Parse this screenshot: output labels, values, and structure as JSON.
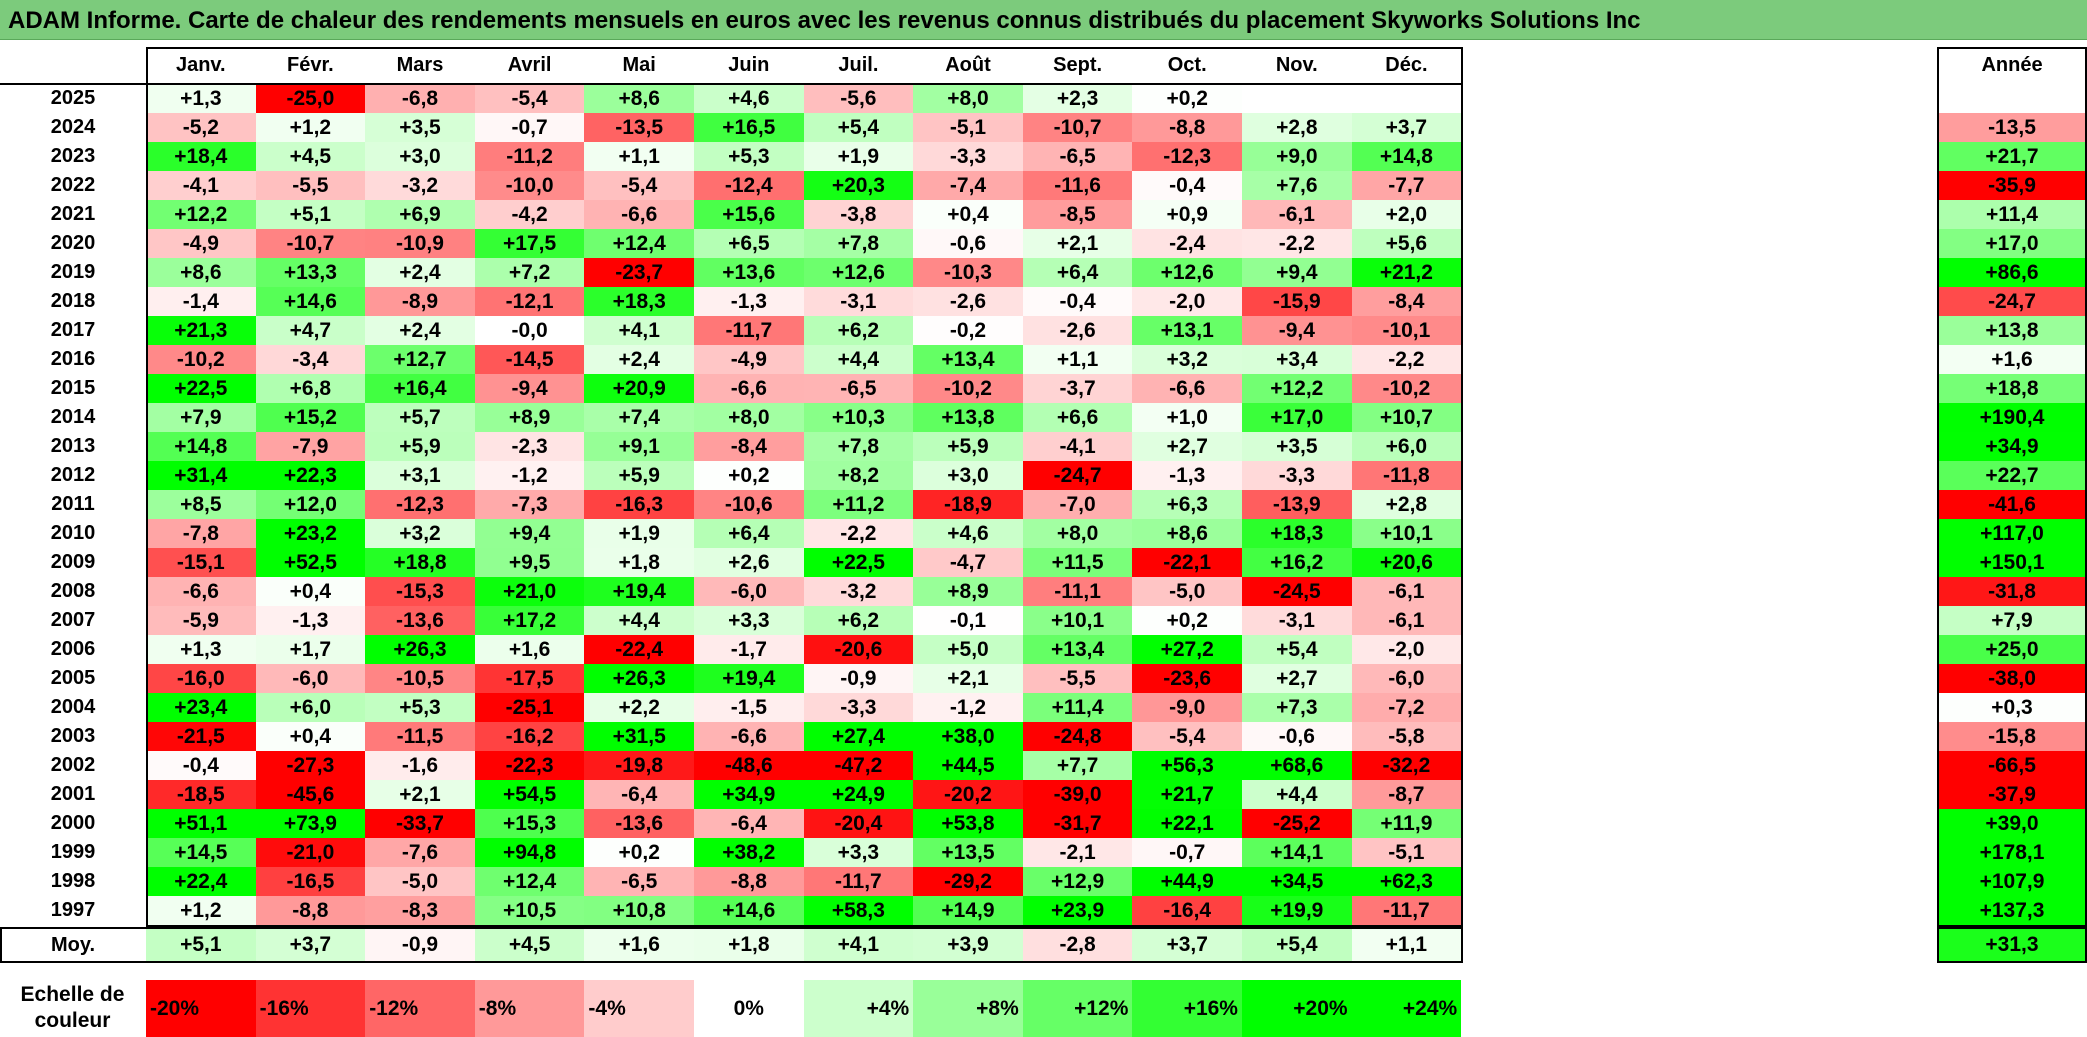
{
  "title": "ADAM Informe. Carte de chaleur des rendements mensuels en euros avec les revenus connus distribués du placement Skyworks Solutions Inc",
  "chart_data": {
    "type": "heatmap",
    "columns": [
      "Janv.",
      "Févr.",
      "Mars",
      "Avril",
      "Mai",
      "Juin",
      "Juil.",
      "Août",
      "Sept.",
      "Oct.",
      "Nov.",
      "Déc."
    ],
    "year_header": "Année",
    "rows": [
      {
        "year": "2025",
        "values": [
          "+1,3",
          "-25,0",
          "-6,8",
          "-5,4",
          "+8,6",
          "+4,6",
          "-5,6",
          "+8,0",
          "+2,3",
          "+0,2",
          "",
          ""
        ],
        "annual": ""
      },
      {
        "year": "2024",
        "values": [
          "-5,2",
          "+1,2",
          "+3,5",
          "-0,7",
          "-13,5",
          "+16,5",
          "+5,4",
          "-5,1",
          "-10,7",
          "-8,8",
          "+2,8",
          "+3,7"
        ],
        "annual": "-13,5"
      },
      {
        "year": "2023",
        "values": [
          "+18,4",
          "+4,5",
          "+3,0",
          "-11,2",
          "+1,1",
          "+5,3",
          "+1,9",
          "-3,3",
          "-6,5",
          "-12,3",
          "+9,0",
          "+14,8"
        ],
        "annual": "+21,7"
      },
      {
        "year": "2022",
        "values": [
          "-4,1",
          "-5,5",
          "-3,2",
          "-10,0",
          "-5,4",
          "-12,4",
          "+20,3",
          "-7,4",
          "-11,6",
          "-0,4",
          "+7,6",
          "-7,7"
        ],
        "annual": "-35,9"
      },
      {
        "year": "2021",
        "values": [
          "+12,2",
          "+5,1",
          "+6,9",
          "-4,2",
          "-6,6",
          "+15,6",
          "-3,8",
          "+0,4",
          "-8,5",
          "+0,9",
          "-6,1",
          "+2,0"
        ],
        "annual": "+11,4"
      },
      {
        "year": "2020",
        "values": [
          "-4,9",
          "-10,7",
          "-10,9",
          "+17,5",
          "+12,4",
          "+6,5",
          "+7,8",
          "-0,6",
          "+2,1",
          "-2,4",
          "-2,2",
          "+5,6"
        ],
        "annual": "+17,0"
      },
      {
        "year": "2019",
        "values": [
          "+8,6",
          "+13,3",
          "+2,4",
          "+7,2",
          "-23,7",
          "+13,6",
          "+12,6",
          "-10,3",
          "+6,4",
          "+12,6",
          "+9,4",
          "+21,2"
        ],
        "annual": "+86,6"
      },
      {
        "year": "2018",
        "values": [
          "-1,4",
          "+14,6",
          "-8,9",
          "-12,1",
          "+18,3",
          "-1,3",
          "-3,1",
          "-2,6",
          "-0,4",
          "-2,0",
          "-15,9",
          "-8,4"
        ],
        "annual": "-24,7"
      },
      {
        "year": "2017",
        "values": [
          "+21,3",
          "+4,7",
          "+2,4",
          "-0,0",
          "+4,1",
          "-11,7",
          "+6,2",
          "-0,2",
          "-2,6",
          "+13,1",
          "-9,4",
          "-10,1"
        ],
        "annual": "+13,8"
      },
      {
        "year": "2016",
        "values": [
          "-10,2",
          "-3,4",
          "+12,7",
          "-14,5",
          "+2,4",
          "-4,9",
          "+4,4",
          "+13,4",
          "+1,1",
          "+3,2",
          "+3,4",
          "-2,2"
        ],
        "annual": "+1,6"
      },
      {
        "year": "2015",
        "values": [
          "+22,5",
          "+6,8",
          "+16,4",
          "-9,4",
          "+20,9",
          "-6,6",
          "-6,5",
          "-10,2",
          "-3,7",
          "-6,6",
          "+12,2",
          "-10,2"
        ],
        "annual": "+18,8"
      },
      {
        "year": "2014",
        "values": [
          "+7,9",
          "+15,2",
          "+5,7",
          "+8,9",
          "+7,4",
          "+8,0",
          "+10,3",
          "+13,8",
          "+6,6",
          "+1,0",
          "+17,0",
          "+10,7"
        ],
        "annual": "+190,4"
      },
      {
        "year": "2013",
        "values": [
          "+14,8",
          "-7,9",
          "+5,9",
          "-2,3",
          "+9,1",
          "-8,4",
          "+7,8",
          "+5,9",
          "-4,1",
          "+2,7",
          "+3,5",
          "+6,0"
        ],
        "annual": "+34,9"
      },
      {
        "year": "2012",
        "values": [
          "+31,4",
          "+22,3",
          "+3,1",
          "-1,2",
          "+5,9",
          "+0,2",
          "+8,2",
          "+3,0",
          "-24,7",
          "-1,3",
          "-3,3",
          "-11,8"
        ],
        "annual": "+22,7"
      },
      {
        "year": "2011",
        "values": [
          "+8,5",
          "+12,0",
          "-12,3",
          "-7,3",
          "-16,3",
          "-10,6",
          "+11,2",
          "-18,9",
          "-7,0",
          "+6,3",
          "-13,9",
          "+2,8"
        ],
        "annual": "-41,6"
      },
      {
        "year": "2010",
        "values": [
          "-7,8",
          "+23,2",
          "+3,2",
          "+9,4",
          "+1,9",
          "+6,4",
          "-2,2",
          "+4,6",
          "+8,0",
          "+8,6",
          "+18,3",
          "+10,1"
        ],
        "annual": "+117,0"
      },
      {
        "year": "2009",
        "values": [
          "-15,1",
          "+52,5",
          "+18,8",
          "+9,5",
          "+1,8",
          "+2,6",
          "+22,5",
          "-4,7",
          "+11,5",
          "-22,1",
          "+16,2",
          "+20,6"
        ],
        "annual": "+150,1"
      },
      {
        "year": "2008",
        "values": [
          "-6,6",
          "+0,4",
          "-15,3",
          "+21,0",
          "+19,4",
          "-6,0",
          "-3,2",
          "+8,9",
          "-11,1",
          "-5,0",
          "-24,5",
          "-6,1"
        ],
        "annual": "-31,8"
      },
      {
        "year": "2007",
        "values": [
          "-5,9",
          "-1,3",
          "-13,6",
          "+17,2",
          "+4,4",
          "+3,3",
          "+6,2",
          "-0,1",
          "+10,1",
          "+0,2",
          "-3,1",
          "-6,1"
        ],
        "annual": "+7,9"
      },
      {
        "year": "2006",
        "values": [
          "+1,3",
          "+1,7",
          "+26,3",
          "+1,6",
          "-22,4",
          "-1,7",
          "-20,6",
          "+5,0",
          "+13,4",
          "+27,2",
          "+5,4",
          "-2,0"
        ],
        "annual": "+25,0"
      },
      {
        "year": "2005",
        "values": [
          "-16,0",
          "-6,0",
          "-10,5",
          "-17,5",
          "+26,3",
          "+19,4",
          "-0,9",
          "+2,1",
          "-5,5",
          "-23,6",
          "+2,7",
          "-6,0"
        ],
        "annual": "-38,0"
      },
      {
        "year": "2004",
        "values": [
          "+23,4",
          "+6,0",
          "+5,3",
          "-25,1",
          "+2,2",
          "-1,5",
          "-3,3",
          "-1,2",
          "+11,4",
          "-9,0",
          "+7,3",
          "-7,2"
        ],
        "annual": "+0,3"
      },
      {
        "year": "2003",
        "values": [
          "-21,5",
          "+0,4",
          "-11,5",
          "-16,2",
          "+31,5",
          "-6,6",
          "+27,4",
          "+38,0",
          "-24,8",
          "-5,4",
          "-0,6",
          "-5,8"
        ],
        "annual": "-15,8"
      },
      {
        "year": "2002",
        "values": [
          "-0,4",
          "-27,3",
          "-1,6",
          "-22,3",
          "-19,8",
          "-48,6",
          "-47,2",
          "+44,5",
          "+7,7",
          "+56,3",
          "+68,6",
          "-32,2"
        ],
        "annual": "-66,5"
      },
      {
        "year": "2001",
        "values": [
          "-18,5",
          "-45,6",
          "+2,1",
          "+54,5",
          "-6,4",
          "+34,9",
          "+24,9",
          "-20,2",
          "-39,0",
          "+21,7",
          "+4,4",
          "-8,7"
        ],
        "annual": "-37,9"
      },
      {
        "year": "2000",
        "values": [
          "+51,1",
          "+73,9",
          "-33,7",
          "+15,3",
          "-13,6",
          "-6,4",
          "-20,4",
          "+53,8",
          "-31,7",
          "+22,1",
          "-25,2",
          "+11,9"
        ],
        "annual": "+39,0"
      },
      {
        "year": "1999",
        "values": [
          "+14,5",
          "-21,0",
          "-7,6",
          "+94,8",
          "+0,2",
          "+38,2",
          "+3,3",
          "+13,5",
          "-2,1",
          "-0,7",
          "+14,1",
          "-5,1"
        ],
        "annual": "+178,1"
      },
      {
        "year": "1998",
        "values": [
          "+22,4",
          "-16,5",
          "-5,0",
          "+12,4",
          "-6,5",
          "-8,8",
          "-11,7",
          "-29,2",
          "+12,9",
          "+44,9",
          "+34,5",
          "+62,3"
        ],
        "annual": "+107,9"
      },
      {
        "year": "1997",
        "values": [
          "+1,2",
          "-8,8",
          "-8,3",
          "+10,5",
          "+10,8",
          "+14,6",
          "+58,3",
          "+14,9",
          "+23,9",
          "-16,4",
          "+19,9",
          "-11,7"
        ],
        "annual": "+137,3"
      }
    ],
    "average": {
      "label": "Moy.",
      "values": [
        "+5,1",
        "+3,7",
        "-0,9",
        "+4,5",
        "+1,6",
        "+1,8",
        "+4,1",
        "+3,9",
        "-2,8",
        "+3,7",
        "+5,4",
        "+1,1"
      ],
      "annual": "+31,3"
    },
    "scale": {
      "label_line1": "Echelle de",
      "label_line2": "couleur",
      "stops": [
        "-20%",
        "-16%",
        "-12%",
        "-8%",
        "-4%",
        "0%",
        "+4%",
        "+8%",
        "+12%",
        "+16%",
        "+20%",
        "+24%"
      ],
      "stop_values": [
        -20,
        -16,
        -12,
        -8,
        -4,
        0,
        4,
        8,
        12,
        16,
        20,
        24
      ]
    },
    "colors": {
      "negative": "#ff0000",
      "neutral": "#ffffff",
      "positive": "#00ff00"
    }
  }
}
